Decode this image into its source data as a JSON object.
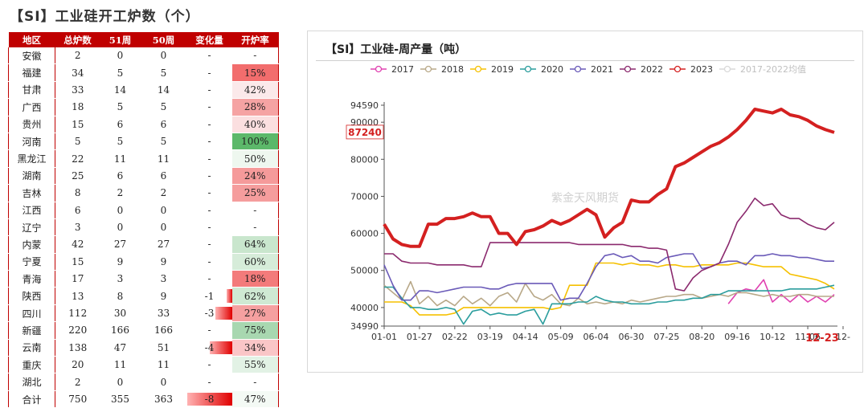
{
  "left_title": "【SI】工业硅开工炉数（个）",
  "table": {
    "headers": [
      "地区",
      "总炉数",
      "51周",
      "50周",
      "变化量",
      "开炉率"
    ],
    "rows": [
      {
        "region": "安徽",
        "total": "2",
        "w51": "0",
        "w50": "0",
        "change": "-",
        "rate": "-",
        "rate_color": "#ffffff",
        "change_bar": 0
      },
      {
        "region": "福建",
        "total": "34",
        "w51": "5",
        "w50": "5",
        "change": "-",
        "rate": "15%",
        "rate_color": "#f26d6d",
        "change_bar": 0
      },
      {
        "region": "甘肃",
        "total": "33",
        "w51": "14",
        "w50": "14",
        "change": "-",
        "rate": "42%",
        "rate_color": "#fbe9ea",
        "change_bar": 0
      },
      {
        "region": "广西",
        "total": "18",
        "w51": "5",
        "w50": "5",
        "change": "-",
        "rate": "28%",
        "rate_color": "#f5a3a3",
        "change_bar": 0
      },
      {
        "region": "贵州",
        "total": "15",
        "w51": "6",
        "w50": "6",
        "change": "-",
        "rate": "40%",
        "rate_color": "#fbdfe0",
        "change_bar": 0
      },
      {
        "region": "河南",
        "total": "5",
        "w51": "5",
        "w50": "5",
        "change": "-",
        "rate": "100%",
        "rate_color": "#5cb86a",
        "change_bar": 0
      },
      {
        "region": "黑龙江",
        "total": "22",
        "w51": "11",
        "w50": "11",
        "change": "-",
        "rate": "50%",
        "rate_color": "#eef7ef",
        "change_bar": 0
      },
      {
        "region": "湖南",
        "total": "25",
        "w51": "6",
        "w50": "6",
        "change": "-",
        "rate": "24%",
        "rate_color": "#f59a9a",
        "change_bar": 0
      },
      {
        "region": "吉林",
        "total": "8",
        "w51": "2",
        "w50": "2",
        "change": "-",
        "rate": "25%",
        "rate_color": "#f59d9d",
        "change_bar": 0
      },
      {
        "region": "江西",
        "total": "6",
        "w51": "0",
        "w50": "0",
        "change": "-",
        "rate": "-",
        "rate_color": "#ffffff",
        "change_bar": 0
      },
      {
        "region": "辽宁",
        "total": "3",
        "w51": "0",
        "w50": "0",
        "change": "-",
        "rate": "-",
        "rate_color": "#ffffff",
        "change_bar": 0
      },
      {
        "region": "内蒙",
        "total": "42",
        "w51": "27",
        "w50": "27",
        "change": "-",
        "rate": "64%",
        "rate_color": "#c9e6cd",
        "change_bar": 0
      },
      {
        "region": "宁夏",
        "total": "15",
        "w51": "9",
        "w50": "9",
        "change": "-",
        "rate": "60%",
        "rate_color": "#d6ecd9",
        "change_bar": 0
      },
      {
        "region": "青海",
        "total": "17",
        "w51": "3",
        "w50": "3",
        "change": "-",
        "rate": "18%",
        "rate_color": "#f37b7b",
        "change_bar": 0
      },
      {
        "region": "陕西",
        "total": "13",
        "w51": "8",
        "w50": "9",
        "change": "-1",
        "rate": "62%",
        "rate_color": "#cfe9d3",
        "change_bar": 1
      },
      {
        "region": "四川",
        "total": "112",
        "w51": "30",
        "w50": "33",
        "change": "-3",
        "rate": "27%",
        "rate_color": "#f5a0a0",
        "change_bar": 3
      },
      {
        "region": "新疆",
        "total": "220",
        "w51": "166",
        "w50": "166",
        "change": "-",
        "rate": "75%",
        "rate_color": "#a8d7b0",
        "change_bar": 0
      },
      {
        "region": "云南",
        "total": "138",
        "w51": "47",
        "w50": "51",
        "change": "-4",
        "rate": "34%",
        "rate_color": "#fac6c7",
        "change_bar": 4
      },
      {
        "region": "重庆",
        "total": "20",
        "w51": "11",
        "w50": "11",
        "change": "-",
        "rate": "55%",
        "rate_color": "#e2f2e5",
        "change_bar": 0
      },
      {
        "region": "湖北",
        "total": "2",
        "w51": "0",
        "w50": "0",
        "change": "-",
        "rate": "-",
        "rate_color": "#ffffff",
        "change_bar": 0
      }
    ],
    "total_row": {
      "region": "合计",
      "total": "750",
      "w51": "355",
      "w50": "363",
      "change": "-8",
      "rate": "47%",
      "rate_color": "#f4faf5",
      "change_bar": 8
    }
  },
  "chart_title": "【SI】工业硅-周产量（吨）",
  "watermark": "紫金天风期货",
  "chart_data": {
    "type": "line",
    "title": "【SI】工业硅-周产量（吨）",
    "ylim": [
      34990,
      94590
    ],
    "yticks": [
      34990,
      40000,
      50000,
      60000,
      70000,
      80000,
      90000,
      94590
    ],
    "ytick_labels": [
      "34990",
      "40000",
      "50000",
      "60000",
      "70000",
      "80000",
      "90000",
      "94590"
    ],
    "current_value_label": "87240",
    "last_date_label": "12-23",
    "xticks": [
      "01-01",
      "01-27",
      "02-22",
      "03-19",
      "04-14",
      "05-09",
      "06-04",
      "06-30",
      "07-25",
      "08-20",
      "09-16",
      "10-12",
      "11-06",
      "12-"
    ],
    "n_points": 52,
    "series": [
      {
        "name": "2017",
        "color": "#e040b0",
        "values": [
          null,
          null,
          null,
          null,
          null,
          null,
          null,
          null,
          null,
          null,
          null,
          null,
          null,
          null,
          null,
          null,
          null,
          null,
          null,
          null,
          null,
          null,
          null,
          null,
          null,
          null,
          null,
          null,
          null,
          null,
          null,
          null,
          null,
          null,
          null,
          null,
          null,
          null,
          null,
          41000,
          44000,
          45000,
          44500,
          47500,
          41500,
          43500,
          41500,
          43500,
          41500,
          43000,
          41500,
          43500
        ]
      },
      {
        "name": "2018",
        "color": "#b8a888",
        "values": [
          46000,
          44000,
          42000,
          47000,
          41000,
          43000,
          40500,
          42000,
          40500,
          43000,
          41000,
          42500,
          40500,
          43000,
          44000,
          41500,
          46500,
          43000,
          42000,
          43500,
          41000,
          40500,
          42500,
          41000,
          41500,
          41000,
          41500,
          41000,
          42000,
          41500,
          42000,
          42500,
          43000,
          43000,
          43500,
          43500,
          42500,
          43000,
          43500,
          43000,
          44000,
          44000,
          43500,
          43000,
          43500,
          43000,
          43000,
          43500,
          43500,
          43000,
          43000,
          43000
        ]
      },
      {
        "name": "2019",
        "color": "#f5c000",
        "values": [
          41500,
          41500,
          41500,
          40500,
          38000,
          38000,
          38000,
          38000,
          38500,
          40000,
          40000,
          40000,
          40000,
          40000,
          40000,
          40000,
          40000,
          40000,
          40000,
          39500,
          40000,
          46000,
          46000,
          46000,
          52000,
          52000,
          52000,
          51500,
          52000,
          51500,
          51500,
          51000,
          51500,
          51500,
          51000,
          51000,
          51500,
          51500,
          51500,
          51500,
          52000,
          52000,
          51500,
          51000,
          51000,
          51000,
          49000,
          48500,
          48000,
          47500,
          46500,
          45000
        ]
      },
      {
        "name": "2020",
        "color": "#2a9d9d",
        "values": [
          45500,
          45500,
          42500,
          40000,
          40000,
          39500,
          39500,
          40000,
          39500,
          35500,
          39000,
          39500,
          38000,
          38500,
          38000,
          38000,
          39000,
          39500,
          35500,
          41000,
          41000,
          41000,
          41500,
          41500,
          43000,
          42000,
          41500,
          41500,
          41000,
          41000,
          41000,
          41500,
          41500,
          42000,
          42000,
          42500,
          42500,
          43500,
          43500,
          44500,
          44500,
          44500,
          44500,
          44500,
          44500,
          44500,
          45000,
          45000,
          45000,
          45000,
          45500,
          46000
        ]
      },
      {
        "name": "2021",
        "color": "#6a5ab8",
        "values": [
          51500,
          46000,
          42000,
          42000,
          44500,
          44500,
          44000,
          44500,
          45000,
          45500,
          45500,
          45500,
          45000,
          45000,
          46000,
          46500,
          46500,
          46500,
          46500,
          46500,
          42000,
          42500,
          42500,
          46500,
          51000,
          54000,
          54500,
          53500,
          54000,
          52500,
          52500,
          52000,
          53500,
          54000,
          54500,
          54500,
          50500,
          51000,
          52000,
          52500,
          52500,
          51500,
          54000,
          54000,
          54500,
          54000,
          54000,
          53500,
          53500,
          53000,
          52500,
          52500
        ]
      },
      {
        "name": "2022",
        "color": "#8b2a6e",
        "values": [
          54500,
          54500,
          52500,
          52000,
          52000,
          52000,
          51500,
          51500,
          51500,
          51500,
          51000,
          51000,
          57500,
          57500,
          57500,
          57500,
          57500,
          57500,
          57500,
          57500,
          57500,
          57500,
          57000,
          57000,
          57000,
          57000,
          57000,
          57000,
          56500,
          56500,
          56000,
          56000,
          55500,
          45000,
          44500,
          48000,
          50000,
          51000,
          52000,
          57000,
          63000,
          66000,
          69500,
          67500,
          68000,
          65000,
          64000,
          64000,
          62500,
          61500,
          61000,
          63000
        ]
      },
      {
        "name": "2023",
        "color": "#d42020",
        "values": [
          62500,
          58500,
          57000,
          56500,
          56500,
          62500,
          62500,
          64000,
          64000,
          64500,
          65500,
          64500,
          64500,
          60000,
          60000,
          57000,
          60500,
          61000,
          62000,
          63500,
          62500,
          63500,
          65000,
          66500,
          65000,
          59000,
          61500,
          63000,
          69000,
          68500,
          68500,
          70500,
          72000,
          78000,
          79000,
          80500,
          82000,
          83500,
          84500,
          86000,
          88000,
          90500,
          93500,
          93000,
          92500,
          93500,
          92000,
          91500,
          90500,
          89000,
          88000,
          87240
        ]
      },
      {
        "name": "2017-2022均值",
        "color": "#d9d9d9",
        "values": []
      }
    ]
  }
}
